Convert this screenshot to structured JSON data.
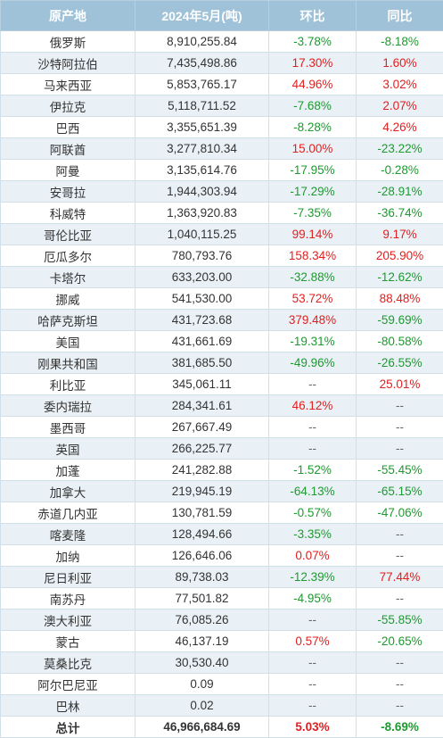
{
  "table": {
    "headers": [
      "原产地",
      "2024年5月(吨)",
      "环比",
      "同比"
    ],
    "rows": [
      {
        "origin": "俄罗斯",
        "volume": "8,910,255.84",
        "mom": "-3.78%",
        "yoy": "-8.18%"
      },
      {
        "origin": "沙特阿拉伯",
        "volume": "7,435,498.86",
        "mom": "17.30%",
        "yoy": "1.60%"
      },
      {
        "origin": "马来西亚",
        "volume": "5,853,765.17",
        "mom": "44.96%",
        "yoy": "3.02%"
      },
      {
        "origin": "伊拉克",
        "volume": "5,118,711.52",
        "mom": "-7.68%",
        "yoy": "2.07%"
      },
      {
        "origin": "巴西",
        "volume": "3,355,651.39",
        "mom": "-8.28%",
        "yoy": "4.26%"
      },
      {
        "origin": "阿联酋",
        "volume": "3,277,810.34",
        "mom": "15.00%",
        "yoy": "-23.22%"
      },
      {
        "origin": "阿曼",
        "volume": "3,135,614.76",
        "mom": "-17.95%",
        "yoy": "-0.28%"
      },
      {
        "origin": "安哥拉",
        "volume": "1,944,303.94",
        "mom": "-17.29%",
        "yoy": "-28.91%"
      },
      {
        "origin": "科威特",
        "volume": "1,363,920.83",
        "mom": "-7.35%",
        "yoy": "-36.74%"
      },
      {
        "origin": "哥伦比亚",
        "volume": "1,040,115.25",
        "mom": "99.14%",
        "yoy": "9.17%"
      },
      {
        "origin": "厄瓜多尔",
        "volume": "780,793.76",
        "mom": "158.34%",
        "yoy": "205.90%"
      },
      {
        "origin": "卡塔尔",
        "volume": "633,203.00",
        "mom": "-32.88%",
        "yoy": "-12.62%"
      },
      {
        "origin": "挪威",
        "volume": "541,530.00",
        "mom": "53.72%",
        "yoy": "88.48%"
      },
      {
        "origin": "哈萨克斯坦",
        "volume": "431,723.68",
        "mom": "379.48%",
        "yoy": "-59.69%"
      },
      {
        "origin": "美国",
        "volume": "431,661.69",
        "mom": "-19.31%",
        "yoy": "-80.58%"
      },
      {
        "origin": "刚果共和国",
        "volume": "381,685.50",
        "mom": "-49.96%",
        "yoy": "-26.55%"
      },
      {
        "origin": "利比亚",
        "volume": "345,061.11",
        "mom": "--",
        "yoy": "25.01%"
      },
      {
        "origin": "委内瑞拉",
        "volume": "284,341.61",
        "mom": "46.12%",
        "yoy": "--"
      },
      {
        "origin": "墨西哥",
        "volume": "267,667.49",
        "mom": "--",
        "yoy": "--"
      },
      {
        "origin": "英国",
        "volume": "266,225.77",
        "mom": "--",
        "yoy": "--"
      },
      {
        "origin": "加蓬",
        "volume": "241,282.88",
        "mom": "-1.52%",
        "yoy": "-55.45%"
      },
      {
        "origin": "加拿大",
        "volume": "219,945.19",
        "mom": "-64.13%",
        "yoy": "-65.15%"
      },
      {
        "origin": "赤道几内亚",
        "volume": "130,781.59",
        "mom": "-0.57%",
        "yoy": "-47.06%"
      },
      {
        "origin": "喀麦隆",
        "volume": "128,494.66",
        "mom": "-3.35%",
        "yoy": "--"
      },
      {
        "origin": "加纳",
        "volume": "126,646.06",
        "mom": "0.07%",
        "yoy": "--"
      },
      {
        "origin": "尼日利亚",
        "volume": "89,738.03",
        "mom": "-12.39%",
        "yoy": "77.44%"
      },
      {
        "origin": "南苏丹",
        "volume": "77,501.82",
        "mom": "-4.95%",
        "yoy": "--"
      },
      {
        "origin": "澳大利亚",
        "volume": "76,085.26",
        "mom": "--",
        "yoy": "-55.85%"
      },
      {
        "origin": "蒙古",
        "volume": "46,137.19",
        "mom": "0.57%",
        "yoy": "-20.65%"
      },
      {
        "origin": "莫桑比克",
        "volume": "30,530.40",
        "mom": "--",
        "yoy": "--"
      },
      {
        "origin": "阿尔巴尼亚",
        "volume": "0.09",
        "mom": "--",
        "yoy": "--"
      },
      {
        "origin": "巴林",
        "volume": "0.02",
        "mom": "--",
        "yoy": "--"
      }
    ],
    "total": {
      "origin": "总计",
      "volume": "46,966,684.69",
      "mom": "5.03%",
      "yoy": "-8.69%"
    }
  },
  "colors": {
    "header_bg": "#9fc2d8",
    "header_text": "#ffffff",
    "stripe": "#eaf1f6",
    "positive": "#e02020",
    "negative": "#1e9a30"
  }
}
